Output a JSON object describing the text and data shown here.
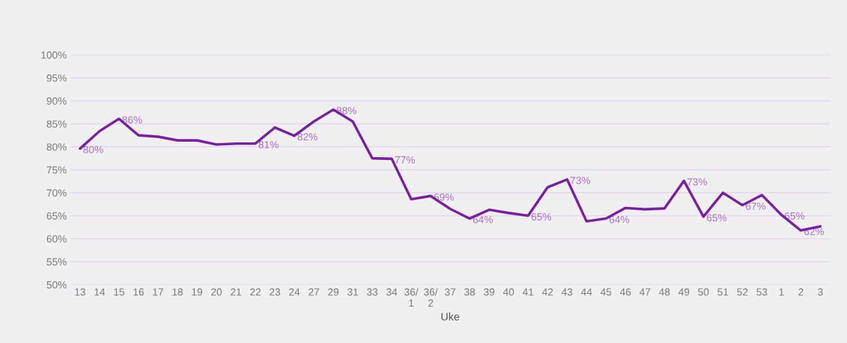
{
  "chart_data": {
    "type": "line",
    "xlabel": "Uke",
    "categories": [
      "13",
      "14",
      "15",
      "16",
      "17",
      "18",
      "19",
      "20",
      "21",
      "22",
      "23",
      "24",
      "27",
      "29",
      "31",
      "33",
      "34",
      "36/\n1",
      "36/\n2",
      "37",
      "38",
      "39",
      "40",
      "41",
      "42",
      "43",
      "44",
      "45",
      "46",
      "47",
      "48",
      "49",
      "50",
      "51",
      "52",
      "53",
      "1",
      "2",
      "3"
    ],
    "series": [
      {
        "color": "#7a1fa2",
        "values": [
          79.6,
          83.4,
          86.1,
          82.5,
          82.2,
          81.4,
          81.4,
          80.5,
          80.7,
          80.7,
          84.2,
          82.4,
          85.5,
          88.1,
          85.5,
          77.5,
          77.4,
          68.6,
          69.3,
          66.5,
          64.4,
          66.3,
          65.6,
          65.0,
          71.2,
          72.9,
          63.8,
          64.4,
          66.7,
          66.4,
          66.6,
          72.6,
          64.8,
          70.0,
          67.3,
          69.5,
          65.2,
          61.8,
          62.7
        ],
        "value_labels": [
          "80%",
          null,
          "86%",
          null,
          null,
          null,
          null,
          null,
          null,
          "81%",
          null,
          "82%",
          null,
          "88%",
          null,
          null,
          "77%",
          null,
          "69%",
          null,
          "64%",
          null,
          null,
          "65%",
          null,
          "73%",
          null,
          "64%",
          null,
          null,
          null,
          "73%",
          "65%",
          null,
          "67%",
          null,
          "65%",
          "62%",
          null
        ]
      }
    ],
    "ylim": [
      50,
      100
    ],
    "yticks": [
      {
        "value": 50,
        "label": "50%"
      },
      {
        "value": 55,
        "label": "55%"
      },
      {
        "value": 60,
        "label": "60%"
      },
      {
        "value": 65,
        "label": "65%"
      },
      {
        "value": 70,
        "label": "70%"
      },
      {
        "value": 75,
        "label": "75%"
      },
      {
        "value": 80,
        "label": "80%"
      },
      {
        "value": 85,
        "label": "85%"
      },
      {
        "value": 90,
        "label": "90%"
      },
      {
        "value": 95,
        "label": "95%"
      },
      {
        "value": 100,
        "label": "100%"
      }
    ],
    "grid": "y",
    "legend": false,
    "marker": "none",
    "line_style": "solid"
  }
}
